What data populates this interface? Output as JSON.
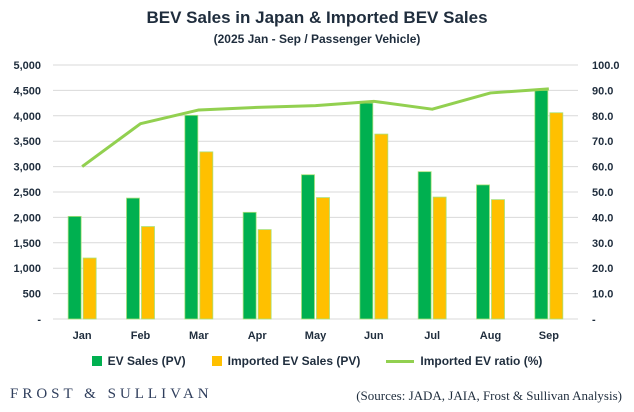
{
  "chart_data": {
    "type": "bar",
    "title": "BEV Sales  in Japan & Imported BEV Sales",
    "subtitle": "(2025 Jan - Sep / Passenger Vehicle)",
    "categories": [
      "Jan",
      "Feb",
      "Mar",
      "Apr",
      "May",
      "Jun",
      "Jul",
      "Aug",
      "Sep"
    ],
    "series": [
      {
        "name": "EV Sales (PV)",
        "type": "bar",
        "axis": "left",
        "color": "#00b050",
        "values": [
          2020,
          2380,
          4010,
          2100,
          2840,
          4250,
          2900,
          2640,
          4500
        ]
      },
      {
        "name": "Imported EV Sales (PV)",
        "type": "bar",
        "axis": "left",
        "color": "#ffc000",
        "values": [
          1200,
          1820,
          3290,
          1760,
          2390,
          3640,
          2400,
          2350,
          4060
        ]
      },
      {
        "name": "Imported EV ratio (%)",
        "type": "line",
        "axis": "right",
        "color": "#92d050",
        "values": [
          60.0,
          76.9,
          82.3,
          83.3,
          84.0,
          85.7,
          82.6,
          89.0,
          90.6
        ]
      }
    ],
    "y_left": {
      "range": [
        0,
        5000
      ],
      "ticks": [
        "-",
        "500",
        "1,000",
        "1,500",
        "2,000",
        "2,500",
        "3,000",
        "3,500",
        "4,000",
        "4,500",
        "5,000"
      ]
    },
    "y_right": {
      "range": [
        0,
        100
      ],
      "ticks": [
        "-",
        "10.0",
        "20.0",
        "30.0",
        "40.0",
        "50.0",
        "60.0",
        "70.0",
        "80.0",
        "90.0",
        "100.0"
      ]
    },
    "grid": true,
    "legend": "bottom"
  },
  "footer": {
    "logo": "FROST & SULLIVAN",
    "source": "(Sources: JADA, JAIA, Frost & Sullivan Analysis)"
  }
}
